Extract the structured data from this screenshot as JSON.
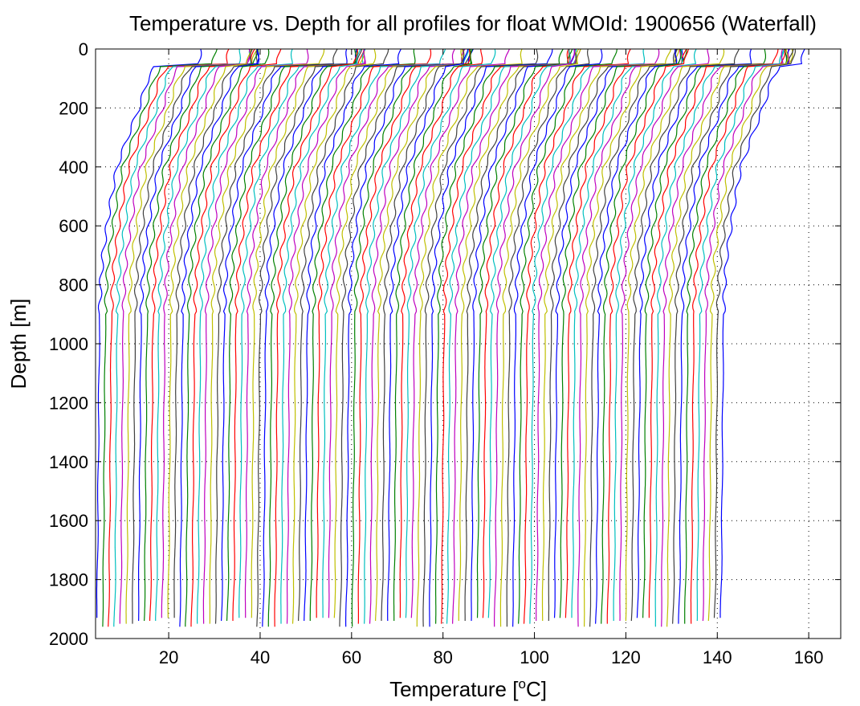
{
  "chart_data": {
    "type": "line",
    "title": "Temperature vs. Depth for all profiles for float WMOId: 1900656 (Waterfall)",
    "xlabel_main": "Temperature [",
    "xlabel_sup": "o",
    "xlabel_end": "C]",
    "ylabel": "Depth [m]",
    "xlim": [
      4,
      167
    ],
    "ylim": [
      0,
      2000
    ],
    "y_reversed": true,
    "grid": true,
    "x_ticks": [
      20,
      40,
      60,
      80,
      100,
      120,
      140,
      160
    ],
    "y_ticks": [
      0,
      200,
      400,
      600,
      800,
      1000,
      1200,
      1400,
      1600,
      1800,
      2000
    ],
    "series_colors": [
      "#0000ff",
      "#008000",
      "#ff0000",
      "#00bfbf",
      "#bf00bf",
      "#bfbf00",
      "#404040"
    ],
    "waterfall": {
      "profile_count": 106,
      "first_offset": 0,
      "offset_step": 1.3,
      "base_deep_temperature": 4.5,
      "profile_shape": [
        {
          "depth": 0,
          "temperature_rel": 22.5
        },
        {
          "depth": 50,
          "temperature_rel": 22.0
        },
        {
          "depth": 60,
          "temperature_rel": 12.5
        },
        {
          "depth": 100,
          "temperature_rel": 11.0
        },
        {
          "depth": 200,
          "temperature_rel": 9.0
        },
        {
          "depth": 300,
          "temperature_rel": 6.5
        },
        {
          "depth": 400,
          "temperature_rel": 4.2
        },
        {
          "depth": 500,
          "temperature_rel": 3.0
        },
        {
          "depth": 600,
          "temperature_rel": 2.0
        },
        {
          "depth": 700,
          "temperature_rel": 1.1
        },
        {
          "depth": 800,
          "temperature_rel": 0.6
        },
        {
          "depth": 900,
          "temperature_rel": 0.4
        },
        {
          "depth": 1000,
          "temperature_rel": 0.3
        },
        {
          "depth": 1200,
          "temperature_rel": 0.2
        },
        {
          "depth": 1500,
          "temperature_rel": 0.05
        },
        {
          "depth": 1800,
          "temperature_rel": -0.1
        },
        {
          "depth": 1950,
          "temperature_rel": -0.3
        }
      ]
    }
  }
}
